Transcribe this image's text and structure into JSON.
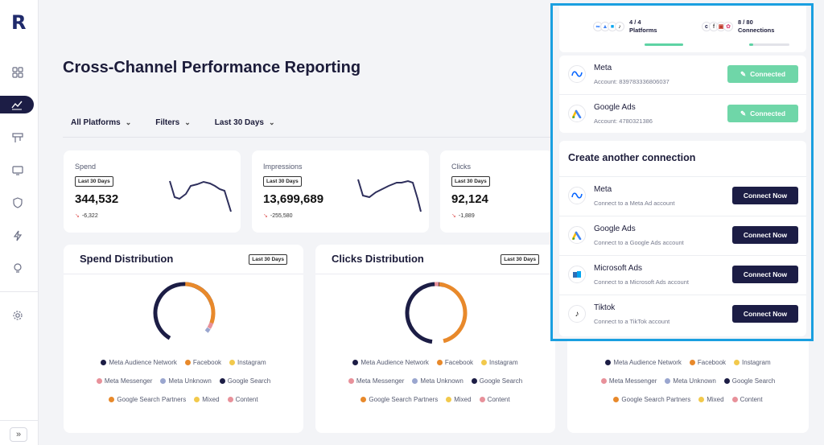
{
  "app": {
    "logo": "R"
  },
  "sidebar": {
    "items": [
      {
        "icon": "grid-icon"
      },
      {
        "icon": "chart-line-icon",
        "active": true
      },
      {
        "icon": "report-icon"
      },
      {
        "icon": "monitor-icon"
      },
      {
        "icon": "shield-icon"
      },
      {
        "icon": "bolt-icon"
      },
      {
        "icon": "bulb-icon"
      },
      {
        "icon": "gear-icon"
      }
    ],
    "expand_label": "»"
  },
  "page": {
    "title": "Cross-Channel Performance Reporting"
  },
  "filters": {
    "platforms": "All Platforms",
    "filters": "Filters",
    "range": "Last 30 Days"
  },
  "metrics": [
    {
      "label": "Spend",
      "badge": "Last 30 Days",
      "value": "344,532",
      "delta": "-6,322"
    },
    {
      "label": "Impressions",
      "badge": "Last 30 Days",
      "value": "13,699,689",
      "delta": "-255,580"
    },
    {
      "label": "Clicks",
      "badge": "Last 30 Days",
      "value": "92,124",
      "delta": "-1,889"
    }
  ],
  "distributions": [
    {
      "title": "Spend Distribution",
      "badge": "Last 30 Days"
    },
    {
      "title": "Clicks Distribution",
      "badge": "Last 30 Days"
    },
    {
      "title": "",
      "badge": ""
    }
  ],
  "legend": {
    "row1": [
      {
        "label": "Meta Audience Network",
        "color": "#1c1d45"
      },
      {
        "label": "Facebook",
        "color": "#e8892b"
      },
      {
        "label": "Instagram",
        "color": "#f2c94c"
      }
    ],
    "row2": [
      {
        "label": "Meta Messenger",
        "color": "#e8919a"
      },
      {
        "label": "Meta Unknown",
        "color": "#9aa6cf"
      },
      {
        "label": "Google Search",
        "color": "#1c1d45"
      }
    ],
    "row3": [
      {
        "label": "Google Search Partners",
        "color": "#e8892b"
      },
      {
        "label": "Mixed",
        "color": "#f2c94c"
      },
      {
        "label": "Content",
        "color": "#e8919a"
      }
    ]
  },
  "panel": {
    "platforms": {
      "count": "4 / 4",
      "label": "Platforms",
      "progress": 1.0
    },
    "connections": {
      "count": "8 / 80",
      "label": "Connections",
      "progress": 0.1
    },
    "connected": [
      {
        "name": "Meta",
        "account": "Account: 839783336806037",
        "button": "Connected",
        "icon": "meta-icon"
      },
      {
        "name": "Google Ads",
        "account": "Account: 4780321386",
        "button": "Connected",
        "icon": "google-ads-icon"
      }
    ],
    "create_title": "Create another connection",
    "available": [
      {
        "name": "Meta",
        "sub": "Connect to a Meta Ad account",
        "button": "Connect Now",
        "icon": "meta-icon"
      },
      {
        "name": "Google Ads",
        "sub": "Connect to a Google Ads account",
        "button": "Connect Now",
        "icon": "google-ads-icon"
      },
      {
        "name": "Microsoft Ads",
        "sub": "Connect to a Microsoft Ads account",
        "button": "Connect Now",
        "icon": "microsoft-ads-icon"
      },
      {
        "name": "Tiktok",
        "sub": "Connect to a TikTok account",
        "button": "Connect Now",
        "icon": "tiktok-icon"
      }
    ]
  }
}
